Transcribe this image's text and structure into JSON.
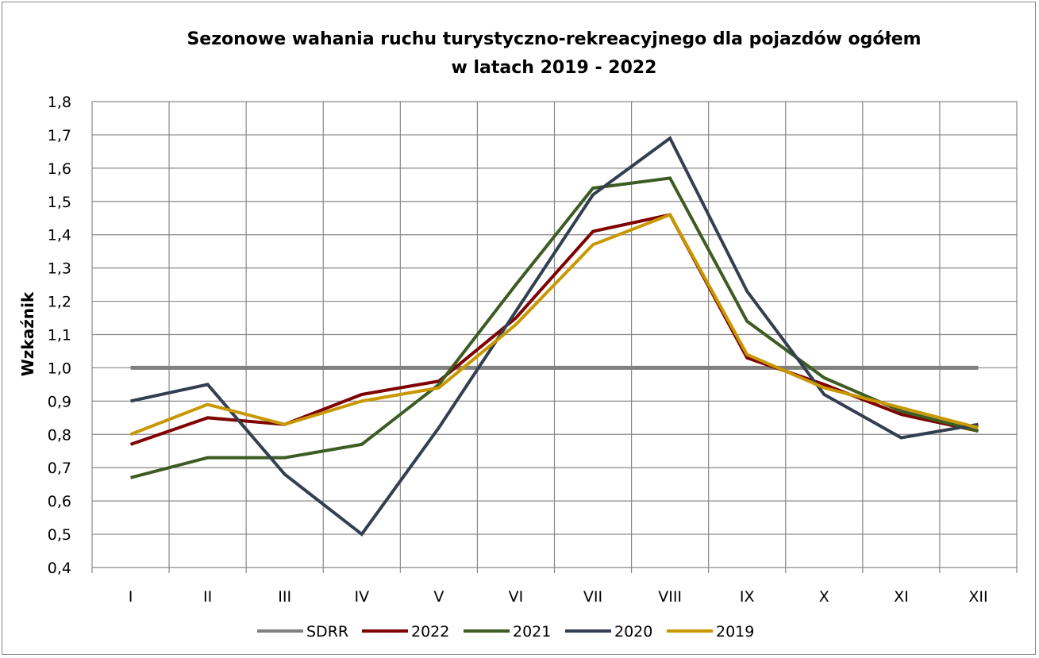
{
  "chart_data": {
    "type": "line",
    "title": [
      "Sezonowe wahania ruchu turystyczno-rekreacyjnego dla pojazdów ogółem",
      "w latach 2019 - 2022"
    ],
    "xlabel": "",
    "ylabel": "Wzkaźnik",
    "ylim": [
      0.4,
      1.8
    ],
    "yticks": [
      "0,4",
      "0,5",
      "0,6",
      "0,7",
      "0,8",
      "0,9",
      "1,0",
      "1,1",
      "1,2",
      "1,3",
      "1,4",
      "1,5",
      "1,6",
      "1,7",
      "1,8"
    ],
    "categories": [
      "I",
      "II",
      "III",
      "IV",
      "V",
      "VI",
      "VII",
      "VIII",
      "IX",
      "X",
      "XI",
      "XII"
    ],
    "grid": true,
    "legend_position": "bottom",
    "series": [
      {
        "name": "SDRR",
        "color": "#808080",
        "values": [
          1,
          1,
          1,
          1,
          1,
          1,
          1,
          1,
          1,
          1,
          1,
          1
        ]
      },
      {
        "name": "2022",
        "color": "#800000",
        "values": [
          0.77,
          0.85,
          0.83,
          0.92,
          0.96,
          1.15,
          1.41,
          1.46,
          1.03,
          0.95,
          0.86,
          0.81
        ]
      },
      {
        "name": "2021",
        "color": "#3d5c23",
        "values": [
          0.67,
          0.73,
          0.73,
          0.77,
          0.95,
          1.25,
          1.54,
          1.57,
          1.14,
          0.97,
          0.87,
          0.81
        ]
      },
      {
        "name": "2020",
        "color": "#333f50",
        "values": [
          0.9,
          0.95,
          0.68,
          0.5,
          0.82,
          1.17,
          1.52,
          1.69,
          1.23,
          0.92,
          0.79,
          0.83
        ]
      },
      {
        "name": "2019",
        "color": "#c89800",
        "values": [
          0.8,
          0.89,
          0.83,
          0.9,
          0.94,
          1.13,
          1.37,
          1.46,
          1.04,
          0.94,
          0.88,
          0.82
        ]
      }
    ]
  }
}
